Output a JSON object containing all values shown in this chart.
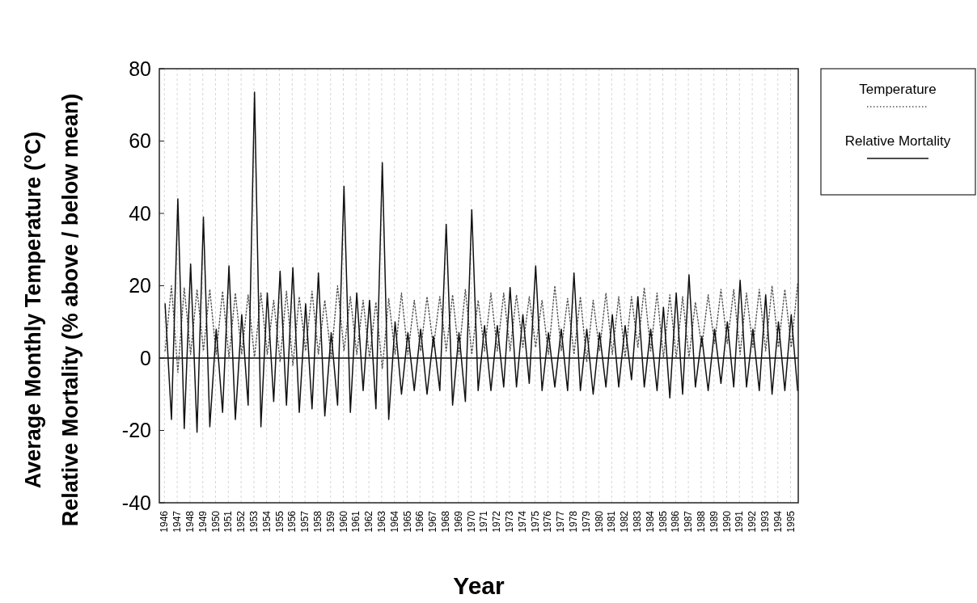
{
  "chart_data": {
    "type": "line",
    "xlabel": "Year",
    "ylabel": "Average Monthly Temperature (°C)\nRelative Mortality (% above / below mean)",
    "xlim": [
      1945.6,
      1995.6
    ],
    "xticks": [
      1946,
      1947,
      1948,
      1949,
      1950,
      1951,
      1952,
      1953,
      1954,
      1955,
      1956,
      1957,
      1958,
      1959,
      1960,
      1961,
      1962,
      1963,
      1964,
      1965,
      1966,
      1967,
      1968,
      1969,
      1970,
      1971,
      1972,
      1973,
      1974,
      1975,
      1976,
      1977,
      1978,
      1979,
      1980,
      1981,
      1982,
      1983,
      1984,
      1985,
      1986,
      1987,
      1988,
      1989,
      1990,
      1991,
      1992,
      1993,
      1994,
      1995
    ],
    "ylim": [
      -40,
      80
    ],
    "yticks": [
      -40,
      -20,
      0,
      20,
      40,
      60,
      80
    ],
    "grid": "x",
    "legend": "right",
    "ref_lines": [
      {
        "axis": "y",
        "value": 0,
        "color": "#000000",
        "line_style": "solid"
      }
    ],
    "x": [
      1946.05,
      1946.55,
      1947.05,
      1947.55,
      1948.05,
      1948.55,
      1949.05,
      1949.55,
      1950.05,
      1950.55,
      1951.05,
      1951.55,
      1952.05,
      1952.55,
      1953.05,
      1953.55,
      1954.05,
      1954.55,
      1955.05,
      1955.55,
      1956.05,
      1956.55,
      1957.05,
      1957.55,
      1958.05,
      1958.55,
      1959.05,
      1959.55,
      1960.05,
      1960.55,
      1961.05,
      1961.55,
      1962.05,
      1962.55,
      1963.05,
      1963.55,
      1964.05,
      1964.55,
      1965.05,
      1965.55,
      1966.05,
      1966.55,
      1967.05,
      1967.55,
      1968.05,
      1968.55,
      1969.05,
      1969.55,
      1970.05,
      1970.55,
      1971.05,
      1971.55,
      1972.05,
      1972.55,
      1973.05,
      1973.55,
      1974.05,
      1974.55,
      1975.05,
      1975.55,
      1976.05,
      1976.55,
      1977.05,
      1977.55,
      1978.05,
      1978.55,
      1979.05,
      1979.55,
      1980.05,
      1980.55,
      1981.05,
      1981.55,
      1982.05,
      1982.55,
      1983.05,
      1983.55,
      1984.05,
      1984.55,
      1985.05,
      1985.55,
      1986.05,
      1986.55,
      1987.05,
      1987.55,
      1988.05,
      1988.55,
      1989.05,
      1989.55,
      1990.05,
      1990.55,
      1991.05,
      1991.55,
      1992.05,
      1992.55,
      1993.05,
      1993.55,
      1994.05,
      1994.55,
      1995.05,
      1995.55
    ],
    "series": [
      {
        "name": "Temperature",
        "color": "#555555",
        "line_style": "dotted",
        "values": [
          2,
          20,
          -4,
          19.5,
          1,
          19,
          2,
          19,
          1,
          18.5,
          0,
          18,
          1,
          17.5,
          0,
          18,
          1,
          16,
          -1,
          18.5,
          -2,
          17,
          2,
          18.5,
          1,
          16,
          0,
          20,
          2,
          17,
          1,
          16,
          0,
          15.5,
          -3,
          16.5,
          1,
          18,
          1,
          16,
          2,
          17,
          3,
          17,
          2,
          17.5,
          1,
          19,
          1,
          16,
          2,
          18,
          2,
          18,
          2,
          17.5,
          3,
          17,
          3,
          16,
          1,
          20,
          2,
          16.5,
          1,
          17,
          -1,
          16,
          2,
          18,
          1,
          17,
          0,
          17,
          3,
          19.5,
          2,
          18,
          0,
          17.5,
          0,
          17,
          0,
          15.5,
          3,
          17.5,
          4,
          19,
          4,
          19,
          1,
          18,
          3,
          19,
          2,
          20,
          3,
          19,
          3,
          20.5
        ]
      },
      {
        "name": "Relative Mortality",
        "color": "#111111",
        "line_style": "solid",
        "values": [
          15,
          -17,
          44,
          -19.5,
          26,
          -20.5,
          39,
          -19,
          8,
          -15,
          25.5,
          -17,
          12,
          -13,
          73.5,
          -19,
          18,
          -12,
          24,
          -13,
          25,
          -15,
          15,
          -14,
          23.5,
          -16,
          7,
          -13,
          47.5,
          -15,
          18,
          -9,
          16,
          -14,
          54,
          -17,
          10,
          -10,
          7,
          -9,
          8,
          -10,
          6,
          -9,
          37,
          -13,
          7,
          -12,
          41,
          -9,
          9,
          -9,
          9,
          -8,
          19.5,
          -8,
          12,
          -7,
          25.5,
          -9,
          7,
          -8,
          8,
          -9,
          23.5,
          -9,
          8,
          -10,
          7,
          -8,
          12,
          -8,
          9,
          -6,
          17,
          -8,
          8,
          -9,
          14,
          -11,
          18,
          -10,
          23,
          -8,
          6,
          -9,
          8,
          -7,
          10,
          -8,
          21.5,
          -8,
          8,
          -9,
          17.5,
          -10,
          10,
          -9,
          12,
          -9
        ]
      }
    ]
  }
}
